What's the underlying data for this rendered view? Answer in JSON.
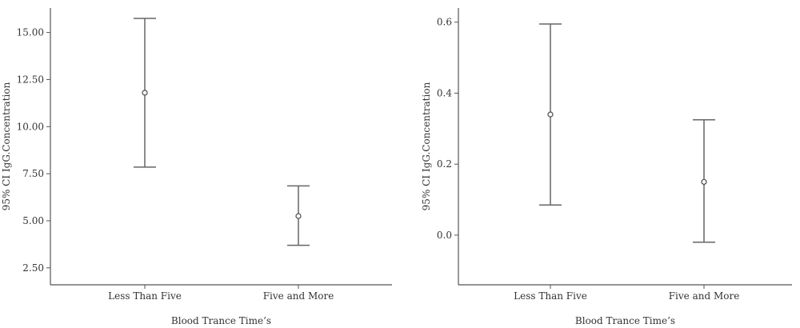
{
  "chart_data": [
    {
      "type": "errorbar",
      "xlabel": "Blood Trance Time’s",
      "ylabel": "95% CI IgG.Concentration",
      "categories": [
        "Less Than Five",
        "Five and More"
      ],
      "series": [
        {
          "mean": [
            11.8,
            5.25
          ],
          "lower": [
            7.85,
            3.7
          ],
          "upper": [
            15.75,
            6.85
          ]
        }
      ],
      "ylim": [
        1.6,
        16.3
      ],
      "yticks": [
        "2.50",
        "5.00",
        "7.50",
        "10.00",
        "12.50",
        "15.00"
      ],
      "grid": false
    },
    {
      "type": "errorbar",
      "xlabel": "Blood Trance Time’s",
      "ylabel": "95% CI IgG.Concentration",
      "categories": [
        "Less Than Five",
        "Five and More"
      ],
      "series": [
        {
          "mean": [
            0.34,
            0.15
          ],
          "lower": [
            0.085,
            -0.02
          ],
          "upper": [
            0.595,
            0.325
          ]
        }
      ],
      "ylim": [
        -0.14,
        0.64
      ],
      "yticks": [
        "0.0",
        "0.2",
        "0.4",
        "0.6"
      ],
      "grid": false
    }
  ]
}
